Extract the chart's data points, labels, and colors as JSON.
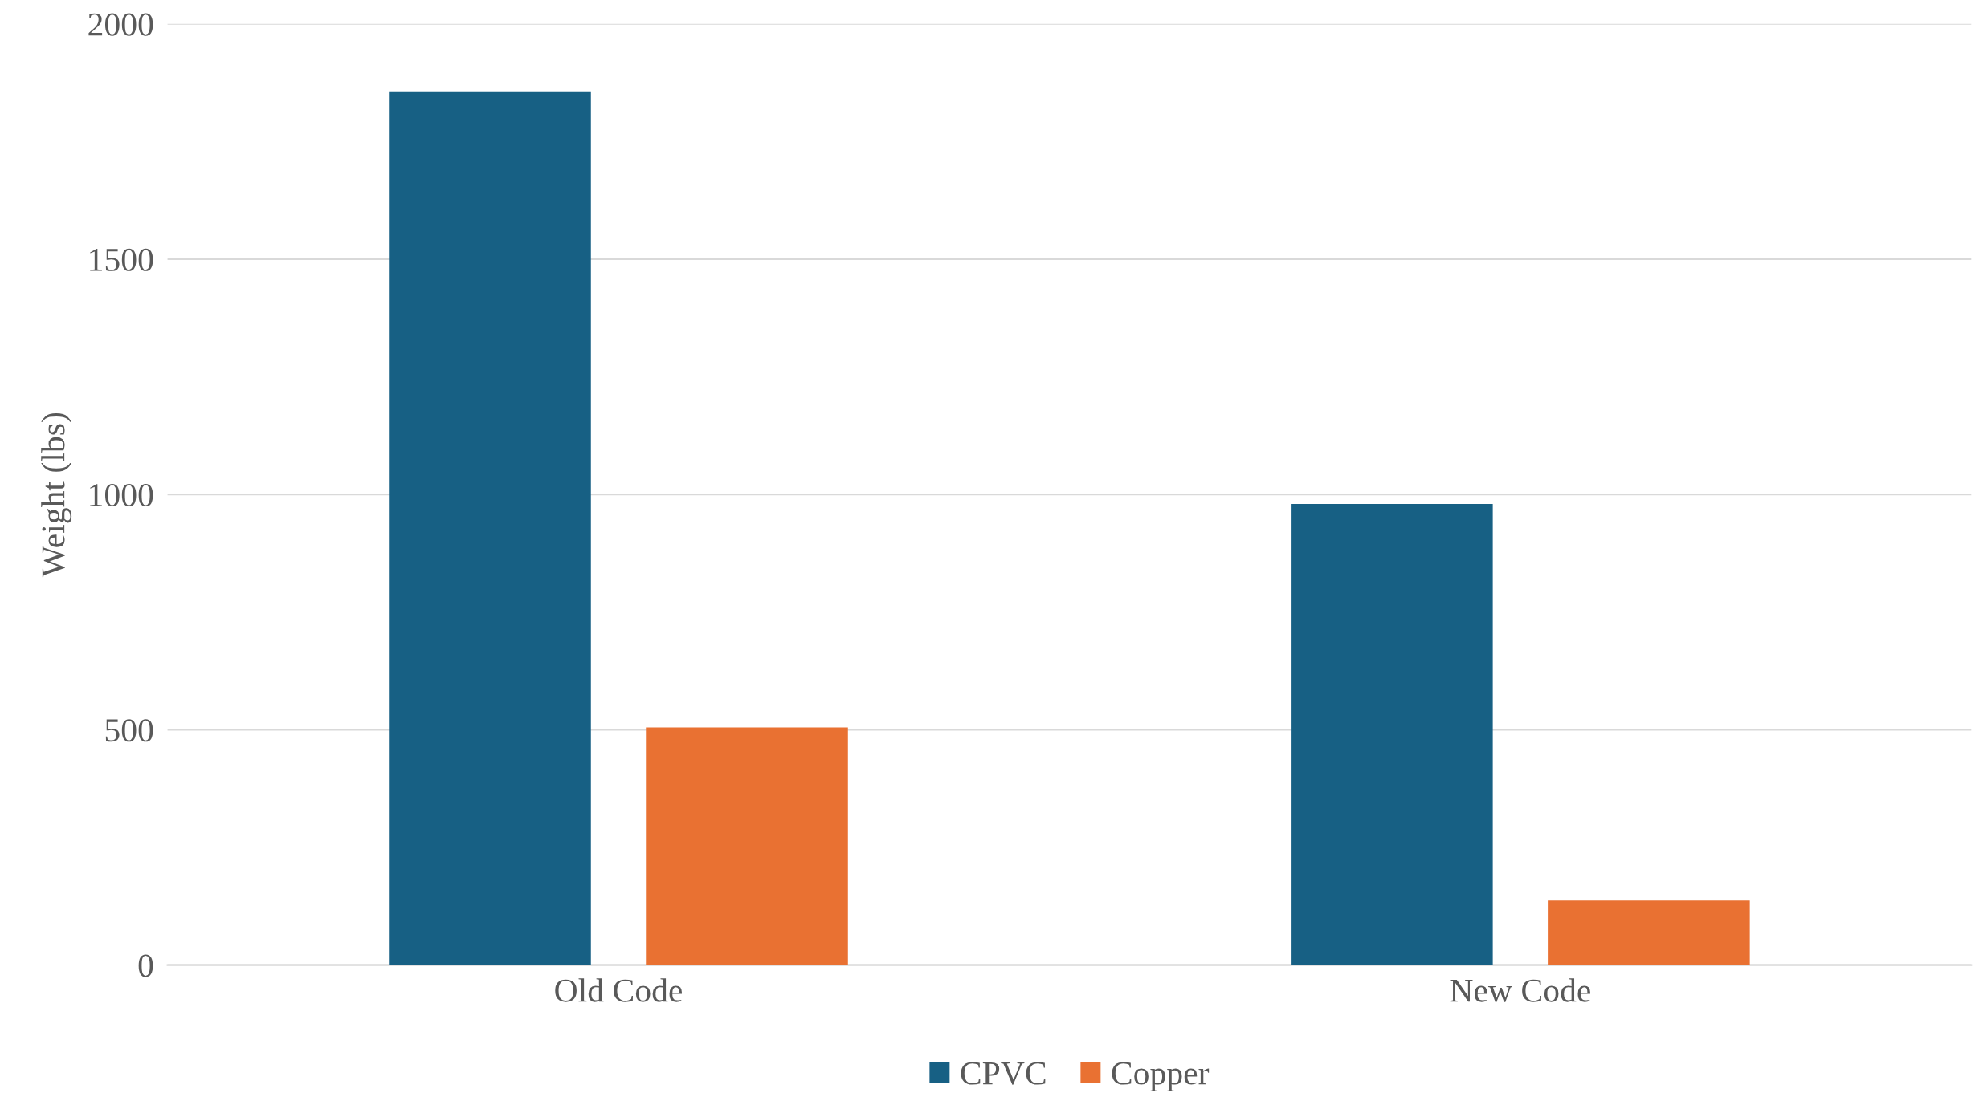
{
  "chart_data": {
    "type": "bar",
    "ylabel": "Weight (lbs)",
    "categories": [
      "Old Code",
      "New Code"
    ],
    "series": [
      {
        "name": "CPVC",
        "color": "#176084",
        "values": [
          1855,
          980
        ]
      },
      {
        "name": "Copper",
        "color": "#e97132",
        "values": [
          505,
          137
        ]
      }
    ],
    "ylim": [
      0,
      2000
    ],
    "yticks": [
      0,
      500,
      1000,
      1500,
      2000
    ],
    "grid": "y",
    "legend": "bottom"
  }
}
